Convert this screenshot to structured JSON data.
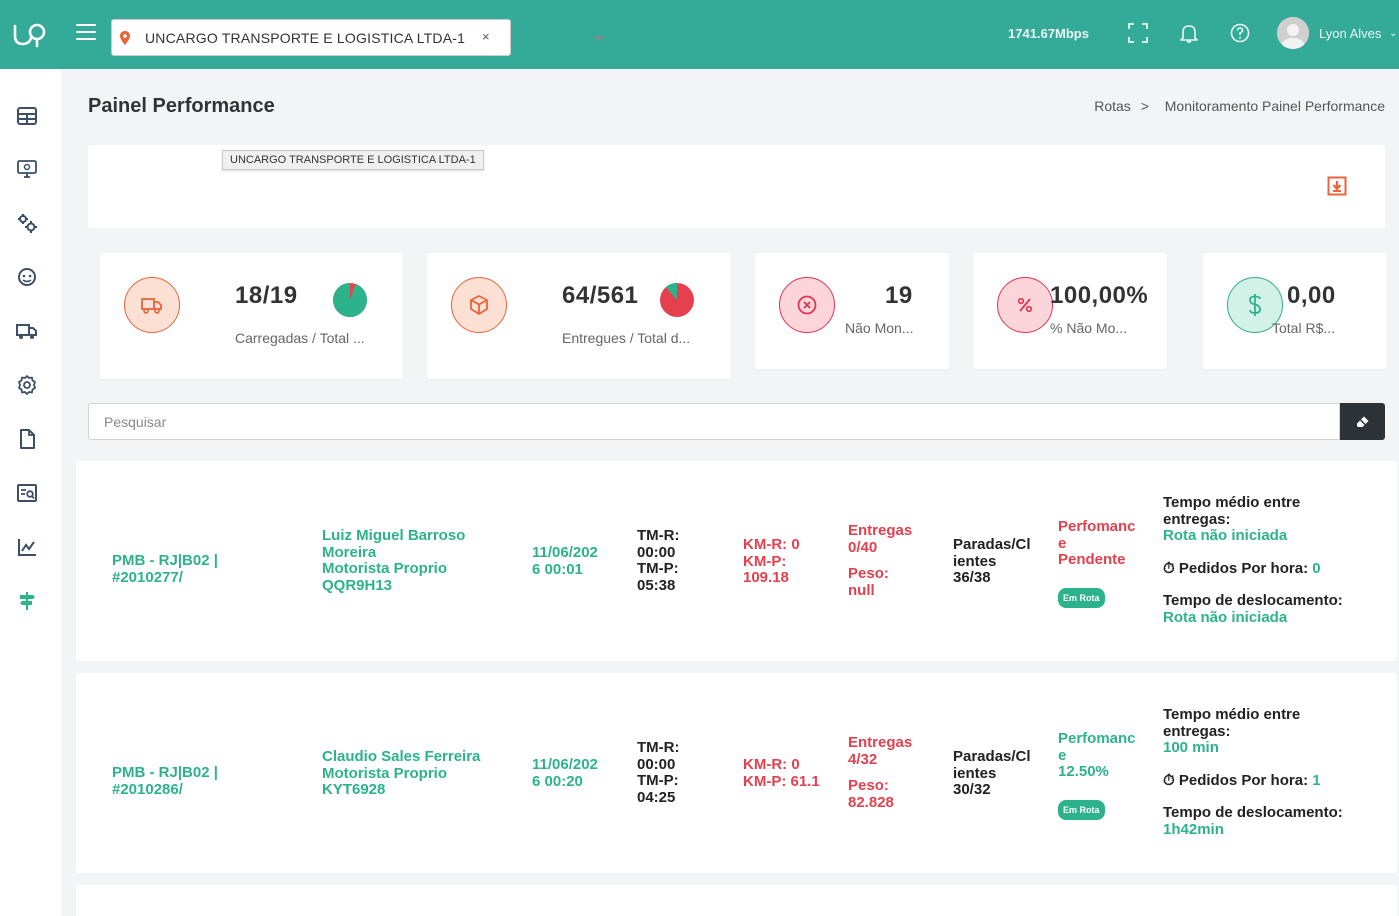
{
  "topbar": {
    "company": "UNCARGO TRANSPORTE E LOGISTICA LTDA-1",
    "clear_label": "×",
    "speed": "1741.67Mbps",
    "user_name": "Lyon Alves"
  },
  "header": {
    "title": "Painel Performance",
    "breadcrumb": [
      "Rotas",
      ">",
      "Monitoramento Painel Performance"
    ]
  },
  "filter": {
    "tag": "UNCARGO TRANSPORTE E LOGISTICA LTDA-1"
  },
  "stats": [
    {
      "value": "18/19",
      "label": "Carregadas / Total ...",
      "pie_fraction": 0.947,
      "icon": "truck-icon"
    },
    {
      "value": "64/561",
      "label": "Entregues / Total d...",
      "pie_fraction": 0.114,
      "icon": "box-icon"
    },
    {
      "value": "19",
      "label": "Não Mon...",
      "icon": "x-circle-icon"
    },
    {
      "value": "100,00%",
      "label": "% Não Mo...",
      "icon": "percent-icon"
    },
    {
      "value": "0,00",
      "label": "Total R$...",
      "icon": "dollar-icon"
    }
  ],
  "search": {
    "placeholder": "Pesquisar"
  },
  "routes": [
    {
      "route_id": [
        "PMB - RJ|B02 |",
        "#2010277/"
      ],
      "driver": [
        "Luiz Miguel Barroso",
        "Moreira",
        "Motorista Proprio",
        "QQR9H13"
      ],
      "date": [
        "11/06/202",
        "6 00:01"
      ],
      "tm": [
        "TM-R:",
        "00:00",
        "TM-P:",
        "05:38"
      ],
      "km": [
        "KM-R: 0",
        "KM-P:",
        "109.18"
      ],
      "entregas": [
        "Entregas",
        "0/40"
      ],
      "peso": [
        "Peso:",
        "null"
      ],
      "paradas": [
        "Paradas/Cl",
        "ientes",
        "36/38"
      ],
      "performance": [
        "Perfomanc",
        "e",
        "Pendente"
      ],
      "status": "Em Rota",
      "tempo_medio_label": "Tempo médio entre entregas:",
      "tempo_medio": "Rota não iniciada",
      "pedidos_label": "Pedidos Por hora:",
      "pedidos": "0",
      "desloc_label": "Tempo de deslocamento:",
      "desloc": "Rota não iniciada"
    },
    {
      "route_id": [
        "PMB - RJ|B02 |",
        "#2010286/"
      ],
      "driver": [
        "Claudio Sales Ferreira",
        "Motorista Proprio",
        "KYT6928"
      ],
      "date": [
        "11/06/202",
        "6 00:20"
      ],
      "tm": [
        "TM-R:",
        "00:00",
        "TM-P:",
        "04:25"
      ],
      "km": [
        "KM-R: 0",
        "KM-P: 61.1"
      ],
      "entregas": [
        "Entregas",
        "4/32"
      ],
      "peso": [
        "Peso:",
        "82.828"
      ],
      "paradas": [
        "Paradas/Cl",
        "ientes",
        "30/32"
      ],
      "performance": [
        "Perfomanc",
        "e",
        "12.50%"
      ],
      "status": "Em Rota",
      "tempo_medio_label": "Tempo médio entre entregas:",
      "tempo_medio": "100 min",
      "pedidos_label": "Pedidos Por hora:",
      "pedidos": "1",
      "desloc_label": "Tempo de deslocamento:",
      "desloc": "1h42min"
    }
  ],
  "colors": {
    "topbar": "#34aa98",
    "accent_green": "#2cb38c",
    "accent_red": "#e4404e",
    "accent_orange": "#e8643a"
  }
}
